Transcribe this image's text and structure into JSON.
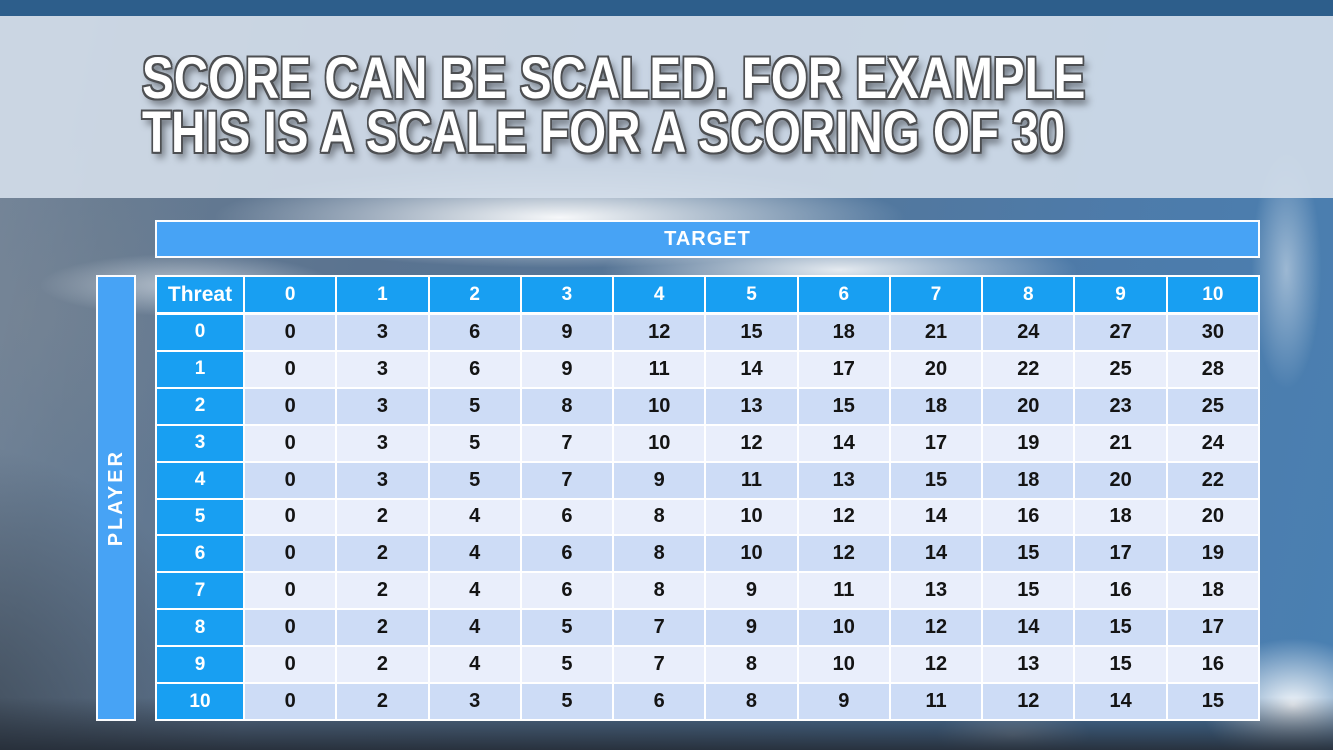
{
  "slide": {
    "title_line1": "SCORE CAN BE SCALED. FOR EXAMPLE",
    "title_line2": "THIS IS A SCALE FOR A SCORING OF 30"
  },
  "table": {
    "target_label": "TARGET",
    "player_label": "PLAYER",
    "corner_label": "Threat",
    "col_headers": [
      "0",
      "1",
      "2",
      "3",
      "4",
      "5",
      "6",
      "7",
      "8",
      "9",
      "10"
    ],
    "row_headers": [
      "0",
      "1",
      "2",
      "3",
      "4",
      "5",
      "6",
      "7",
      "8",
      "9",
      "10"
    ],
    "rows": [
      [
        0,
        3,
        6,
        9,
        12,
        15,
        18,
        21,
        24,
        27,
        30
      ],
      [
        0,
        3,
        6,
        9,
        11,
        14,
        17,
        20,
        22,
        25,
        28
      ],
      [
        0,
        3,
        5,
        8,
        10,
        13,
        15,
        18,
        20,
        23,
        25
      ],
      [
        0,
        3,
        5,
        7,
        10,
        12,
        14,
        17,
        19,
        21,
        24
      ],
      [
        0,
        3,
        5,
        7,
        9,
        11,
        13,
        15,
        18,
        20,
        22
      ],
      [
        0,
        2,
        4,
        6,
        8,
        10,
        12,
        14,
        16,
        18,
        20
      ],
      [
        0,
        2,
        4,
        6,
        8,
        10,
        12,
        14,
        15,
        17,
        19
      ],
      [
        0,
        2,
        4,
        6,
        8,
        9,
        11,
        13,
        15,
        16,
        18
      ],
      [
        0,
        2,
        4,
        5,
        7,
        9,
        10,
        12,
        14,
        15,
        17
      ],
      [
        0,
        2,
        4,
        5,
        7,
        8,
        10,
        12,
        13,
        15,
        16
      ],
      [
        0,
        2,
        3,
        5,
        6,
        8,
        9,
        11,
        12,
        14,
        15
      ]
    ]
  },
  "colors": {
    "header_blue": "#189ff2",
    "band_blue": "#47a3f5",
    "row_even": "#cddcf6",
    "row_odd": "#e9eefb",
    "top_strip": "#2d5e8b",
    "title_band": "#d5dfeb"
  }
}
